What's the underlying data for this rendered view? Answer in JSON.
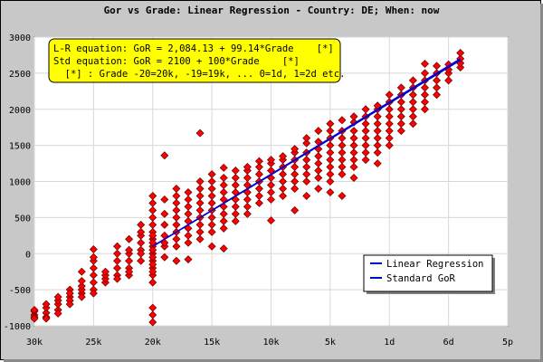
{
  "chart_data": {
    "type": "scatter",
    "title": "Gor vs Grade: Linear Regression - Country: DE; When: now",
    "xlabel": "",
    "ylabel": "",
    "x_ticks": [
      "30k",
      "25k",
      "20k",
      "15k",
      "10k",
      "5k",
      "1d",
      "6d",
      "5p"
    ],
    "x_tick_values": [
      -30,
      -25,
      -20,
      -15,
      -10,
      -5,
      0,
      5,
      10
    ],
    "xlim": [
      -30,
      10
    ],
    "y_ticks": [
      "3000",
      "2500",
      "2000",
      "1500",
      "1000",
      "500",
      "0",
      "-500",
      "-1000"
    ],
    "y_tick_values": [
      3000,
      2500,
      2000,
      1500,
      1000,
      500,
      0,
      -500,
      -1000
    ],
    "ylim": [
      -1000,
      3000
    ],
    "grid": true,
    "annotation": {
      "line1": "L-R equation: GoR = 2,084.13 + 99.14*Grade    [*]",
      "line2": "Std equation: GoR = 2100 + 100*Grade    [*]",
      "line3": "  [*] : Grade -20=20k, -19=19k, ... 0=1d, 1=2d etc.",
      "color": "#ffff00"
    },
    "legend": {
      "placement": "bottom-right",
      "items": [
        "Linear Regression",
        "Standard GoR"
      ],
      "color": "#0000cc"
    },
    "series": [
      {
        "name": "Linear Regression",
        "kind": "line",
        "color": "#0000cc",
        "x": [
          -20,
          6
        ],
        "y": [
          101.33,
          2679.0
        ]
      },
      {
        "name": "Standard GoR",
        "kind": "line",
        "color": "#0000cc",
        "x": [
          -20,
          6
        ],
        "y": [
          100,
          2700
        ]
      },
      {
        "name": "players",
        "kind": "scatter",
        "color": "#ff0000",
        "columns": [
          {
            "x": -30,
            "values": [
              -850,
              -800,
              -880,
              -900,
              -780
            ]
          },
          {
            "x": -29,
            "values": [
              -820,
              -750,
              -880,
              -700,
              -900
            ]
          },
          {
            "x": -28,
            "values": [
              -780,
              -700,
              -650,
              -830,
              -600
            ]
          },
          {
            "x": -27,
            "values": [
              -600,
              -650,
              -500,
              -700,
              -550
            ]
          },
          {
            "x": -26,
            "values": [
              -550,
              -500,
              -450,
              -380,
              -250,
              -600
            ]
          },
          {
            "x": -25,
            "values": [
              -500,
              -300,
              -200,
              -100,
              -50,
              60,
              -550,
              -400
            ]
          },
          {
            "x": -24,
            "values": [
              -400,
              -350,
              -300,
              -250
            ]
          },
          {
            "x": -23,
            "values": [
              -300,
              -200,
              -100,
              0,
              100,
              -350
            ]
          },
          {
            "x": -22,
            "values": [
              -300,
              -200,
              -100,
              0,
              50,
              200,
              -250
            ]
          },
          {
            "x": -21,
            "values": [
              -100,
              50,
              150,
              250,
              300,
              400,
              0
            ]
          },
          {
            "x": -20,
            "values": [
              -950,
              -850,
              -750,
              -400,
              -300,
              -200,
              -100,
              0,
              100,
              200,
              300,
              400,
              500,
              600,
              700,
              800,
              -250,
              -150,
              -50,
              50,
              150,
              250
            ]
          },
          {
            "x": -19,
            "values": [
              -50,
              100,
              250,
              400,
              550,
              750,
              1360,
              150
            ]
          },
          {
            "x": -18,
            "values": [
              -100,
              100,
              200,
              300,
              400,
              500,
              600,
              700,
              800,
              900
            ]
          },
          {
            "x": -17,
            "values": [
              -80,
              150,
              250,
              350,
              450,
              550,
              650,
              750,
              850
            ]
          },
          {
            "x": -16,
            "values": [
              200,
              300,
              400,
              500,
              600,
              700,
              800,
              900,
              1000,
              1670
            ]
          },
          {
            "x": -15,
            "values": [
              100,
              300,
              400,
              500,
              600,
              700,
              800,
              900,
              1000,
              1100
            ]
          },
          {
            "x": -14,
            "values": [
              70,
              350,
              450,
              550,
              650,
              750,
              850,
              950,
              1050,
              1190
            ]
          },
          {
            "x": -13,
            "values": [
              450,
              550,
              650,
              750,
              850,
              950,
              1050,
              1150
            ]
          },
          {
            "x": -12,
            "values": [
              550,
              650,
              750,
              850,
              950,
              1050,
              1150,
              1200
            ]
          },
          {
            "x": -11,
            "values": [
              700,
              800,
              900,
              1000,
              1100,
              1200,
              1280
            ]
          },
          {
            "x": -10,
            "values": [
              460,
              750,
              850,
              950,
              1050,
              1150,
              1250,
              1300
            ]
          },
          {
            "x": -9,
            "values": [
              800,
              900,
              1000,
              1100,
              1200,
              1300,
              1350
            ]
          },
          {
            "x": -8,
            "values": [
              600,
              900,
              1000,
              1100,
              1200,
              1300,
              1400,
              1450
            ]
          },
          {
            "x": -7,
            "values": [
              800,
              1000,
              1100,
              1200,
              1300,
              1400,
              1530,
              1600
            ]
          },
          {
            "x": -6,
            "values": [
              900,
              1050,
              1150,
              1250,
              1350,
              1450,
              1550,
              1700
            ]
          },
          {
            "x": -5,
            "values": [
              850,
              1000,
              1100,
              1200,
              1300,
              1400,
              1500,
              1600,
              1700,
              1800
            ]
          },
          {
            "x": -4,
            "values": [
              800,
              1100,
              1200,
              1300,
              1400,
              1500,
              1600,
              1700,
              1850
            ]
          },
          {
            "x": -3,
            "values": [
              1050,
              1200,
              1300,
              1400,
              1500,
              1600,
              1700,
              1820,
              1900
            ]
          },
          {
            "x": -2,
            "values": [
              1300,
              1400,
              1500,
              1600,
              1700,
              1800,
              1900,
              2000
            ]
          },
          {
            "x": -1,
            "values": [
              1250,
              1400,
              1500,
              1600,
              1700,
              1800,
              1900,
              2000,
              2050
            ]
          },
          {
            "x": 0,
            "values": [
              1500,
              1600,
              1700,
              1800,
              1900,
              2000,
              2100,
              2200
            ]
          },
          {
            "x": 1,
            "values": [
              1700,
              1800,
              1900,
              2000,
              2100,
              2200,
              2300
            ]
          },
          {
            "x": 2,
            "values": [
              1800,
              1900,
              2000,
              2100,
              2200,
              2300,
              2400
            ]
          },
          {
            "x": 3,
            "values": [
              2000,
              2100,
              2200,
              2300,
              2400,
              2500,
              2630
            ]
          },
          {
            "x": 4,
            "values": [
              2200,
              2300,
              2400,
              2500,
              2600
            ]
          },
          {
            "x": 5,
            "values": [
              2400,
              2500,
              2550,
              2620
            ]
          },
          {
            "x": 6,
            "values": [
              2580,
              2640,
              2700,
              2780
            ]
          }
        ]
      }
    ]
  }
}
